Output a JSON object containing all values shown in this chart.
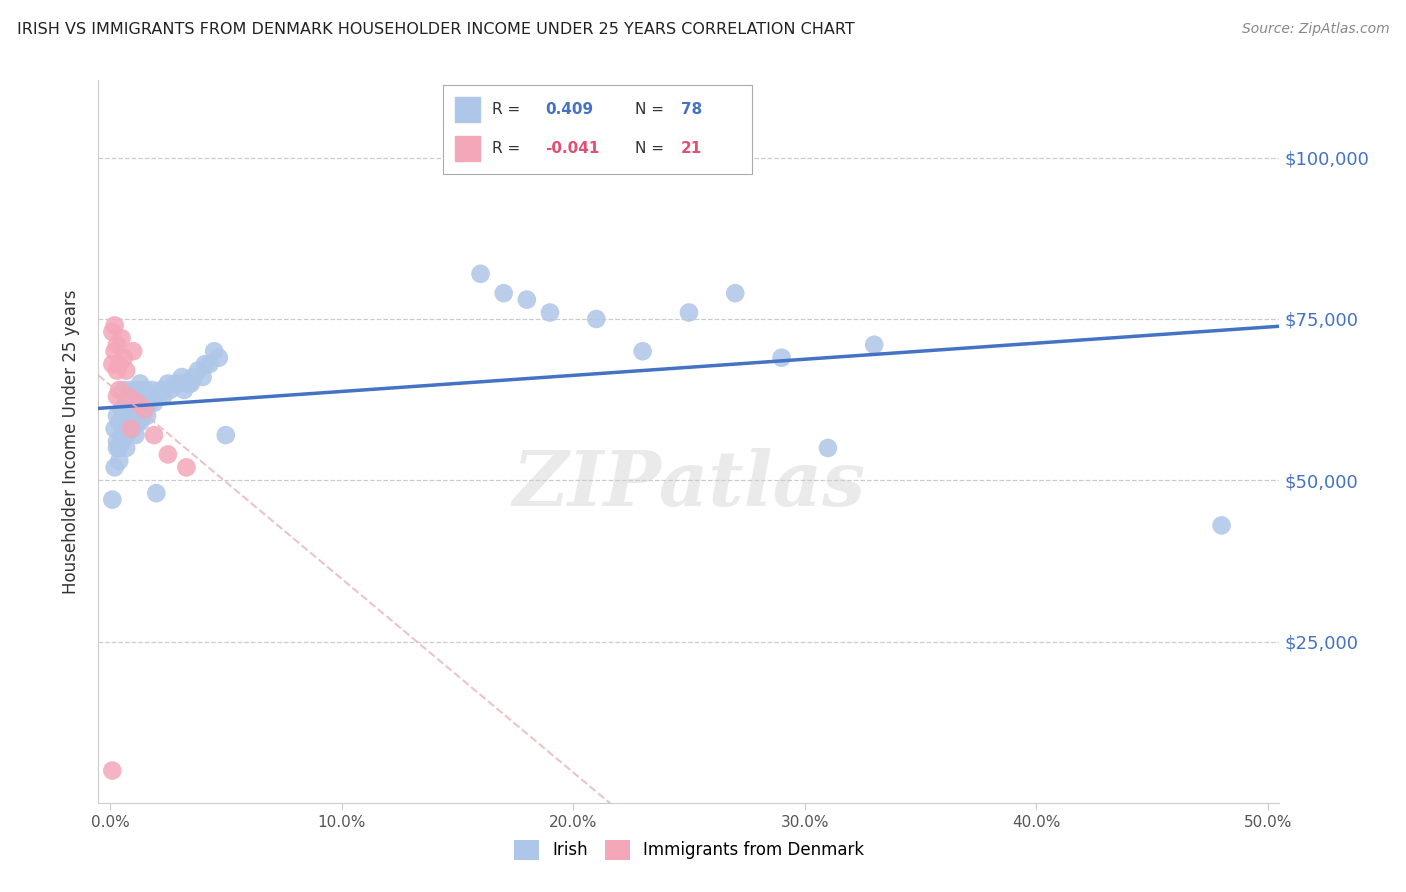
{
  "title": "IRISH VS IMMIGRANTS FROM DENMARK HOUSEHOLDER INCOME UNDER 25 YEARS CORRELATION CHART",
  "source": "Source: ZipAtlas.com",
  "ylabel": "Householder Income Under 25 years",
  "xlabel_ticks": [
    "0.0%",
    "10.0%",
    "20.0%",
    "30.0%",
    "40.0%",
    "50.0%"
  ],
  "xlabel_vals": [
    0.0,
    0.1,
    0.2,
    0.3,
    0.4,
    0.5
  ],
  "ytick_labels": [
    "$25,000",
    "$50,000",
    "$75,000",
    "$100,000"
  ],
  "ytick_vals": [
    25000,
    50000,
    75000,
    100000
  ],
  "ylim": [
    0,
    112000
  ],
  "xlim": [
    -0.005,
    0.505
  ],
  "legend_irish_R": "0.409",
  "legend_irish_N": "78",
  "legend_denmark_R": "-0.041",
  "legend_denmark_N": "21",
  "irish_color": "#AEC6E8",
  "denmark_color": "#F4A7B9",
  "irish_line_color": "#4472C4",
  "denmark_line_color": "#E8B4BB",
  "watermark": "ZIPatlas",
  "irish_x": [
    0.001,
    0.002,
    0.002,
    0.003,
    0.003,
    0.003,
    0.004,
    0.004,
    0.004,
    0.005,
    0.005,
    0.005,
    0.006,
    0.006,
    0.006,
    0.007,
    0.007,
    0.007,
    0.007,
    0.008,
    0.008,
    0.008,
    0.009,
    0.009,
    0.009,
    0.01,
    0.01,
    0.01,
    0.011,
    0.011,
    0.012,
    0.012,
    0.012,
    0.013,
    0.013,
    0.013,
    0.014,
    0.014,
    0.015,
    0.015,
    0.016,
    0.016,
    0.017,
    0.018,
    0.019,
    0.02,
    0.021,
    0.022,
    0.023,
    0.025,
    0.026,
    0.028,
    0.03,
    0.031,
    0.032,
    0.033,
    0.034,
    0.035,
    0.036,
    0.038,
    0.04,
    0.041,
    0.043,
    0.045,
    0.047,
    0.05,
    0.16,
    0.17,
    0.18,
    0.19,
    0.21,
    0.23,
    0.25,
    0.27,
    0.29,
    0.31,
    0.33,
    0.48
  ],
  "irish_y": [
    47000,
    58000,
    52000,
    56000,
    60000,
    55000,
    55000,
    59000,
    53000,
    57000,
    61000,
    56000,
    60000,
    64000,
    58000,
    59000,
    62000,
    57000,
    55000,
    60000,
    63000,
    58000,
    61000,
    64000,
    58000,
    60000,
    63000,
    58000,
    62000,
    57000,
    61000,
    64000,
    59000,
    62000,
    65000,
    59000,
    63000,
    60000,
    64000,
    61000,
    63000,
    60000,
    62000,
    64000,
    62000,
    48000,
    63000,
    64000,
    63000,
    65000,
    64000,
    65000,
    65000,
    66000,
    64000,
    65000,
    65000,
    65000,
    66000,
    67000,
    66000,
    68000,
    68000,
    70000,
    69000,
    57000,
    82000,
    79000,
    78000,
    76000,
    75000,
    70000,
    76000,
    79000,
    69000,
    55000,
    71000,
    43000
  ],
  "denmark_x": [
    0.001,
    0.001,
    0.002,
    0.002,
    0.003,
    0.003,
    0.003,
    0.004,
    0.004,
    0.005,
    0.006,
    0.007,
    0.008,
    0.009,
    0.01,
    0.012,
    0.015,
    0.019,
    0.025,
    0.033,
    0.001
  ],
  "denmark_y": [
    73000,
    68000,
    74000,
    70000,
    71000,
    67000,
    63000,
    68000,
    64000,
    72000,
    69000,
    67000,
    63000,
    58000,
    70000,
    62000,
    61000,
    57000,
    54000,
    52000,
    5000
  ]
}
